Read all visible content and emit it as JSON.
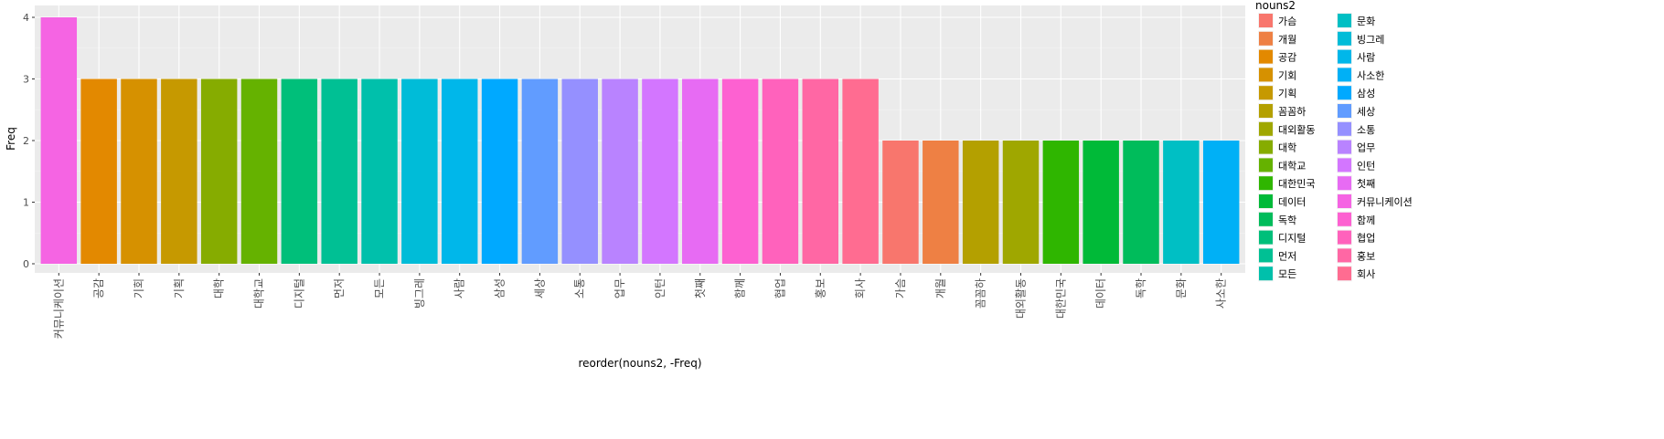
{
  "chart_data": {
    "type": "bar",
    "xlabel": "reorder(nouns2, -Freq)",
    "ylabel": "Freq",
    "ylim": [
      0,
      4
    ],
    "yticks": [
      0,
      1,
      2,
      3,
      4
    ],
    "grid": true,
    "legend_position": "right",
    "categories": [
      "커뮤니케이션",
      "공감",
      "기회",
      "기획",
      "대학",
      "대학교",
      "디지털",
      "먼저",
      "모든",
      "빙그레",
      "사람",
      "삼성",
      "세상",
      "소통",
      "업무",
      "인턴",
      "첫째",
      "함께",
      "협업",
      "홍보",
      "회사",
      "가슴",
      "개월",
      "꼼꼼하",
      "대외활동",
      "대한민국",
      "데이터",
      "독학",
      "문화",
      "사소한"
    ],
    "values": [
      4,
      3,
      3,
      3,
      3,
      3,
      3,
      3,
      3,
      3,
      3,
      3,
      3,
      3,
      3,
      3,
      3,
      3,
      3,
      3,
      3,
      2,
      2,
      2,
      2,
      2,
      2,
      2,
      2,
      2
    ],
    "legend": {
      "title": "nouns2",
      "entries": [
        {
          "label": "가슴",
          "color": "#F8766D"
        },
        {
          "label": "개월",
          "color": "#EE8044"
        },
        {
          "label": "공감",
          "color": "#E38900"
        },
        {
          "label": "기회",
          "color": "#D69100"
        },
        {
          "label": "기획",
          "color": "#C69900"
        },
        {
          "label": "꼼꼼하",
          "color": "#B4A000"
        },
        {
          "label": "대외활동",
          "color": "#9FA700"
        },
        {
          "label": "대학",
          "color": "#86AC00"
        },
        {
          "label": "대학교",
          "color": "#65B200"
        },
        {
          "label": "대한민국",
          "color": "#2FB600"
        },
        {
          "label": "데이터",
          "color": "#00BA38"
        },
        {
          "label": "독학",
          "color": "#00BC5B"
        },
        {
          "label": "디지털",
          "color": "#00BF7A"
        },
        {
          "label": "먼저",
          "color": "#00C094"
        },
        {
          "label": "모든",
          "color": "#00C0AB"
        },
        {
          "label": "문화",
          "color": "#00BFC4"
        },
        {
          "label": "빙그레",
          "color": "#00BCD8"
        },
        {
          "label": "사람",
          "color": "#00B7EA"
        },
        {
          "label": "사소한",
          "color": "#00B0F6"
        },
        {
          "label": "삼성",
          "color": "#00A9FF"
        },
        {
          "label": "세상",
          "color": "#619CFF"
        },
        {
          "label": "소통",
          "color": "#9590FF"
        },
        {
          "label": "업무",
          "color": "#B983FF"
        },
        {
          "label": "인턴",
          "color": "#D376FF"
        },
        {
          "label": "첫째",
          "color": "#E76BF3"
        },
        {
          "label": "커뮤니케이션",
          "color": "#F564E3"
        },
        {
          "label": "함께",
          "color": "#FD61D1"
        },
        {
          "label": "협업",
          "color": "#FF62BC"
        },
        {
          "label": "홍보",
          "color": "#FF67A4"
        },
        {
          "label": "회사",
          "color": "#FF6C91"
        }
      ]
    }
  }
}
